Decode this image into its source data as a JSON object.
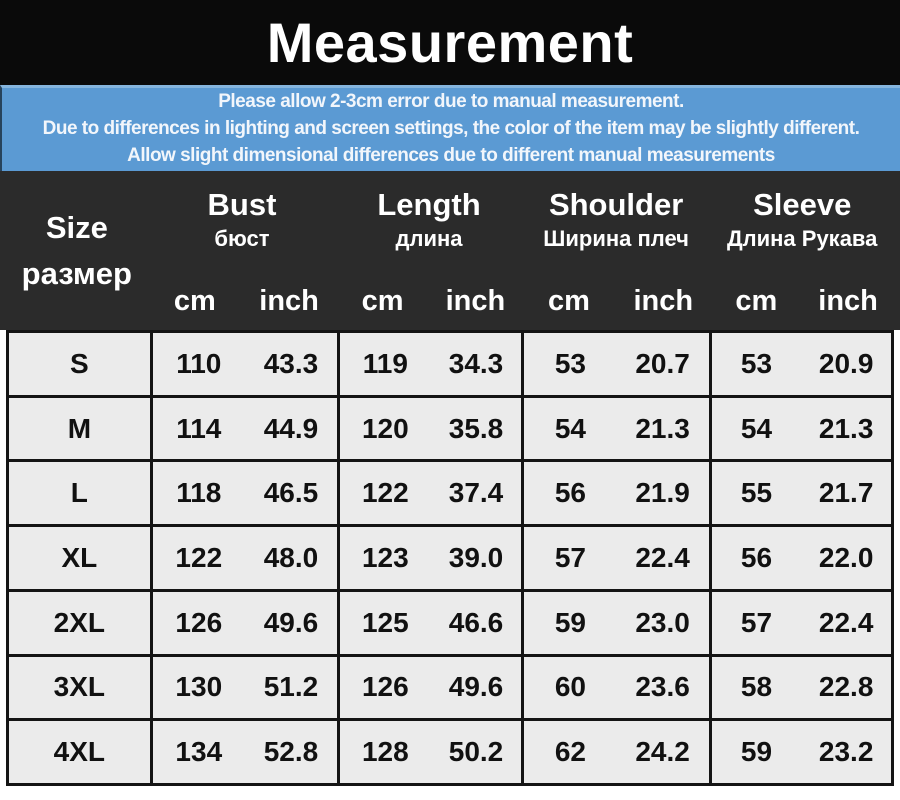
{
  "title": "Measurement",
  "disclaimer": {
    "lines": [
      "Please allow 2-3cm error due to manual measurement.",
      "Due to differences in lighting and screen settings, the color of the item may be slightly different.",
      "Allow slight dimensional differences due to different manual measurements"
    ]
  },
  "colors": {
    "title_bg": "#0a0a0a",
    "banner_bg": "#5b9ad3",
    "header_bg": "#2b2b2b",
    "cell_bg": "#ebebeb",
    "border": "#141414",
    "text_light": "#ffffff",
    "text_dark": "#111111"
  },
  "table": {
    "size_header": {
      "label": "Size",
      "sublabel": "размер"
    },
    "groups": [
      {
        "label": "Bust",
        "sublabel": "бюст"
      },
      {
        "label": "Length",
        "sublabel": "длина"
      },
      {
        "label": "Shoulder",
        "sublabel": "Ширина плеч"
      },
      {
        "label": "Sleeve",
        "sublabel": "Длина Рукава"
      }
    ],
    "units": {
      "cm": "cm",
      "inch": "inch"
    },
    "rows": [
      {
        "size": "S",
        "bust_cm": "110",
        "bust_inch": "43.3",
        "length_cm": "119",
        "length_inch": "34.3",
        "shoulder_cm": "53",
        "shoulder_inch": "20.7",
        "sleeve_cm": "53",
        "sleeve_inch": "20.9"
      },
      {
        "size": "M",
        "bust_cm": "114",
        "bust_inch": "44.9",
        "length_cm": "120",
        "length_inch": "35.8",
        "shoulder_cm": "54",
        "shoulder_inch": "21.3",
        "sleeve_cm": "54",
        "sleeve_inch": "21.3"
      },
      {
        "size": "L",
        "bust_cm": "118",
        "bust_inch": "46.5",
        "length_cm": "122",
        "length_inch": "37.4",
        "shoulder_cm": "56",
        "shoulder_inch": "21.9",
        "sleeve_cm": "55",
        "sleeve_inch": "21.7"
      },
      {
        "size": "XL",
        "bust_cm": "122",
        "bust_inch": "48.0",
        "length_cm": "123",
        "length_inch": "39.0",
        "shoulder_cm": "57",
        "shoulder_inch": "22.4",
        "sleeve_cm": "56",
        "sleeve_inch": "22.0"
      },
      {
        "size": "2XL",
        "bust_cm": "126",
        "bust_inch": "49.6",
        "length_cm": "125",
        "length_inch": "46.6",
        "shoulder_cm": "59",
        "shoulder_inch": "23.0",
        "sleeve_cm": "57",
        "sleeve_inch": "22.4"
      },
      {
        "size": "3XL",
        "bust_cm": "130",
        "bust_inch": "51.2",
        "length_cm": "126",
        "length_inch": "49.6",
        "shoulder_cm": "60",
        "shoulder_inch": "23.6",
        "sleeve_cm": "58",
        "sleeve_inch": "22.8"
      },
      {
        "size": "4XL",
        "bust_cm": "134",
        "bust_inch": "52.8",
        "length_cm": "128",
        "length_inch": "50.2",
        "shoulder_cm": "62",
        "shoulder_inch": "24.2",
        "sleeve_cm": "59",
        "sleeve_inch": "23.2"
      }
    ]
  },
  "chart_data": {
    "type": "table",
    "title": "Measurement",
    "notes": [
      "Please allow 2-3cm error due to manual measurement.",
      "Due to differences in lighting and screen settings, the color of the item may be slightly different.",
      "Allow slight dimensional differences due to different manual measurements"
    ],
    "columns": [
      "Size размер",
      "Bust cm",
      "Bust inch",
      "Length cm",
      "Length inch",
      "Shoulder cm",
      "Shoulder inch",
      "Sleeve cm",
      "Sleeve inch"
    ],
    "rows": [
      [
        "S",
        110,
        43.3,
        119,
        34.3,
        53,
        20.7,
        53,
        20.9
      ],
      [
        "M",
        114,
        44.9,
        120,
        35.8,
        54,
        21.3,
        54,
        21.3
      ],
      [
        "L",
        118,
        46.5,
        122,
        37.4,
        56,
        21.9,
        55,
        21.7
      ],
      [
        "XL",
        122,
        48.0,
        123,
        39.0,
        57,
        22.4,
        56,
        22.0
      ],
      [
        "2XL",
        126,
        49.6,
        125,
        46.6,
        59,
        23.0,
        57,
        22.4
      ],
      [
        "3XL",
        130,
        51.2,
        126,
        49.6,
        60,
        23.6,
        58,
        22.8
      ],
      [
        "4XL",
        134,
        52.8,
        128,
        50.2,
        62,
        24.2,
        59,
        23.2
      ]
    ]
  }
}
